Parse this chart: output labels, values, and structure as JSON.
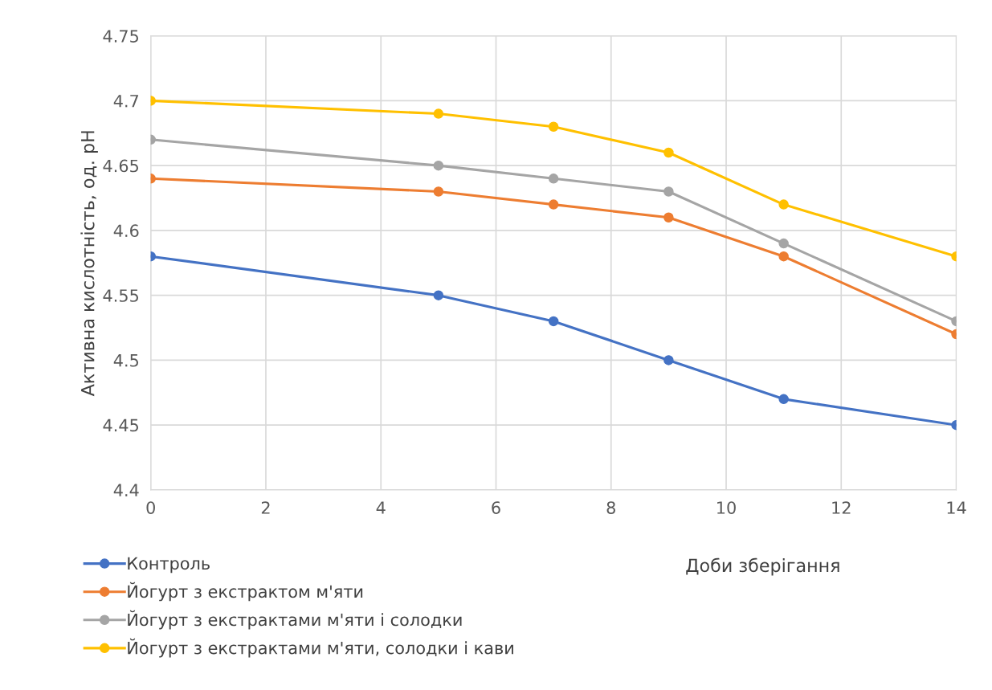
{
  "chart_data": {
    "type": "line",
    "xlabel": "Доби зберігання",
    "ylabel": "Активна кислотність, од. pH",
    "x": [
      0,
      5,
      7,
      9,
      11,
      14
    ],
    "series": [
      {
        "name": "Контроль",
        "color": "#4472c4",
        "values": [
          4.58,
          4.55,
          4.53,
          4.5,
          4.47,
          4.45
        ]
      },
      {
        "name": "Йогурт з екстрактом м'яти",
        "color": "#ed7d31",
        "values": [
          4.64,
          4.63,
          4.62,
          4.61,
          4.58,
          4.52
        ]
      },
      {
        "name": "Йогурт з екстрактами м'яти і солодки",
        "color": "#a5a5a5",
        "values": [
          4.67,
          4.65,
          4.64,
          4.63,
          4.59,
          4.53
        ]
      },
      {
        "name": "Йогурт з екстрактами м'яти, солодки і кави",
        "color": "#ffc000",
        "values": [
          4.7,
          4.69,
          4.68,
          4.66,
          4.62,
          4.58
        ]
      }
    ],
    "xlim": [
      0,
      14
    ],
    "xticks": [
      0,
      2,
      4,
      6,
      8,
      10,
      12,
      14
    ],
    "ylim": [
      4.4,
      4.75
    ],
    "yticks": [
      4.4,
      4.45,
      4.5,
      4.55,
      4.6,
      4.65,
      4.7,
      4.75
    ],
    "grid": true,
    "legend": "bottom left",
    "marker": "circle",
    "line_style": "solid"
  }
}
